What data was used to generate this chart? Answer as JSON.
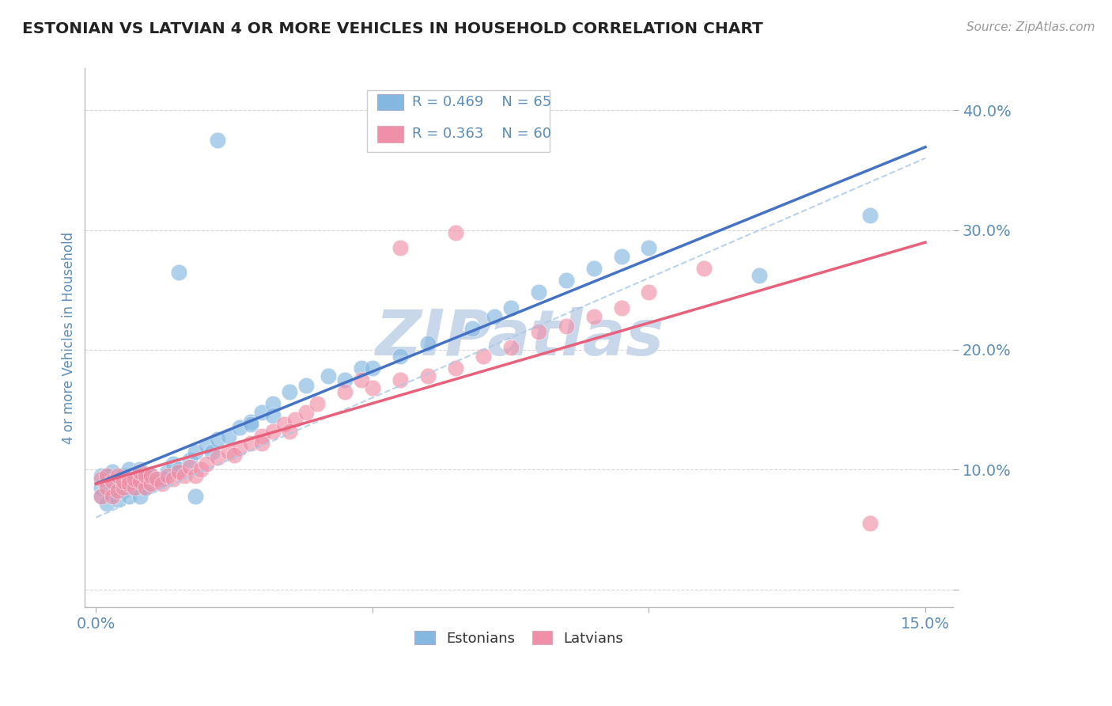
{
  "title": "ESTONIAN VS LATVIAN 4 OR MORE VEHICLES IN HOUSEHOLD CORRELATION CHART",
  "source_text": "Source: ZipAtlas.com",
  "ylabel": "4 or more Vehicles in Household",
  "xlim": [
    -0.002,
    0.155
  ],
  "ylim": [
    -0.015,
    0.435
  ],
  "xticks": [
    0.0,
    0.05,
    0.1,
    0.15
  ],
  "yticks": [
    0.0,
    0.1,
    0.2,
    0.3,
    0.4
  ],
  "xtick_labels": [
    "0.0%",
    "",
    "",
    "15.0%"
  ],
  "ytick_labels": [
    "",
    "10.0%",
    "20.0%",
    "30.0%",
    "40.0%"
  ],
  "estonian_color": "#85b8e0",
  "latvian_color": "#f090a8",
  "estonian_line_color": "#4472c4",
  "latvian_line_color": "#e8607a",
  "estonian_dash_color": "#a8c8e8",
  "estonian_R": 0.469,
  "estonian_N": 65,
  "latvian_R": 0.363,
  "latvian_N": 60,
  "watermark_text": "ZIPatlas",
  "watermark_color": "#c8d8ea",
  "background_color": "#ffffff",
  "grid_color": "#cccccc",
  "title_color": "#222222",
  "tick_label_color": "#5b8db8",
  "ylabel_color": "#5b8db8",
  "legend_text_color": "#5b8db8",
  "source_color": "#999999",
  "estonian_x": [
    0.001,
    0.001,
    0.001,
    0.002,
    0.002,
    0.002,
    0.003,
    0.003,
    0.003,
    0.003,
    0.004,
    0.004,
    0.005,
    0.005,
    0.005,
    0.006,
    0.006,
    0.006,
    0.007,
    0.007,
    0.008,
    0.008,
    0.008,
    0.009,
    0.009,
    0.01,
    0.01,
    0.011,
    0.012,
    0.013,
    0.014,
    0.015,
    0.017,
    0.018,
    0.02,
    0.021,
    0.022,
    0.024,
    0.026,
    0.028,
    0.03,
    0.032,
    0.035,
    0.038,
    0.042,
    0.048,
    0.055,
    0.06,
    0.068,
    0.072,
    0.075,
    0.08,
    0.085,
    0.09,
    0.095,
    0.1,
    0.045,
    0.05,
    0.028,
    0.032,
    0.015,
    0.018,
    0.022,
    0.12,
    0.14
  ],
  "estonian_y": [
    0.085,
    0.078,
    0.095,
    0.072,
    0.088,
    0.095,
    0.08,
    0.092,
    0.085,
    0.098,
    0.075,
    0.09,
    0.082,
    0.095,
    0.088,
    0.09,
    0.1,
    0.078,
    0.095,
    0.085,
    0.092,
    0.078,
    0.1,
    0.085,
    0.095,
    0.088,
    0.095,
    0.09,
    0.092,
    0.098,
    0.105,
    0.1,
    0.108,
    0.115,
    0.12,
    0.115,
    0.125,
    0.128,
    0.135,
    0.14,
    0.148,
    0.155,
    0.165,
    0.17,
    0.178,
    0.185,
    0.195,
    0.205,
    0.218,
    0.228,
    0.235,
    0.248,
    0.258,
    0.268,
    0.278,
    0.285,
    0.175,
    0.185,
    0.138,
    0.145,
    0.265,
    0.078,
    0.375,
    0.262,
    0.312
  ],
  "latvian_x": [
    0.001,
    0.001,
    0.002,
    0.002,
    0.003,
    0.003,
    0.004,
    0.004,
    0.005,
    0.005,
    0.006,
    0.006,
    0.007,
    0.007,
    0.008,
    0.008,
    0.009,
    0.009,
    0.01,
    0.01,
    0.011,
    0.012,
    0.013,
    0.014,
    0.015,
    0.016,
    0.017,
    0.018,
    0.019,
    0.02,
    0.022,
    0.024,
    0.026,
    0.028,
    0.03,
    0.032,
    0.034,
    0.036,
    0.038,
    0.04,
    0.045,
    0.05,
    0.055,
    0.06,
    0.065,
    0.07,
    0.075,
    0.08,
    0.085,
    0.09,
    0.095,
    0.1,
    0.11,
    0.025,
    0.03,
    0.035,
    0.055,
    0.065,
    0.14,
    0.048
  ],
  "latvian_y": [
    0.078,
    0.092,
    0.085,
    0.095,
    0.078,
    0.09,
    0.082,
    0.095,
    0.085,
    0.09,
    0.092,
    0.088,
    0.085,
    0.092,
    0.09,
    0.098,
    0.085,
    0.095,
    0.088,
    0.095,
    0.092,
    0.088,
    0.095,
    0.092,
    0.098,
    0.095,
    0.102,
    0.095,
    0.1,
    0.105,
    0.11,
    0.115,
    0.118,
    0.122,
    0.128,
    0.132,
    0.138,
    0.142,
    0.148,
    0.155,
    0.165,
    0.168,
    0.175,
    0.178,
    0.185,
    0.195,
    0.202,
    0.215,
    0.22,
    0.228,
    0.235,
    0.248,
    0.268,
    0.112,
    0.122,
    0.132,
    0.285,
    0.298,
    0.055,
    0.175
  ]
}
